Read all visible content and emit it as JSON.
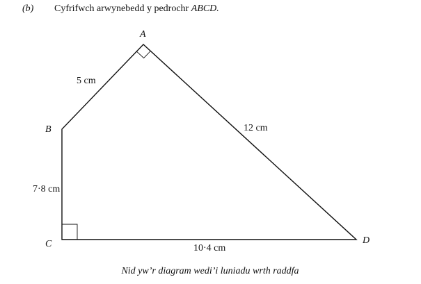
{
  "question": {
    "part": "(b)",
    "text": "Cyfrifwch arwynebedd y pedrochr",
    "shape": "ABCD."
  },
  "diagram": {
    "vertices": {
      "A": "A",
      "B": "B",
      "C": "C",
      "D": "D"
    },
    "sides": {
      "AB": "5 cm",
      "AD": "12 cm",
      "BC": "7·8 cm",
      "CD": "10·4 cm"
    }
  },
  "note": "Nid yw’r diagram wedi’i luniadu wrth raddfa"
}
